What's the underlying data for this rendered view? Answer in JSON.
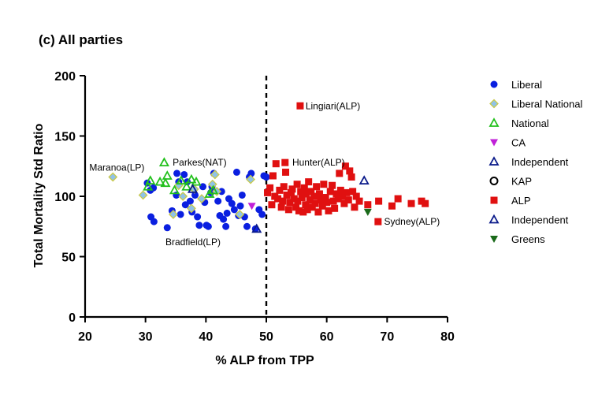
{
  "chart_data": {
    "type": "scatter",
    "title": "(c) All parties",
    "xlabel": "% ALP from TPP",
    "ylabel": "Total Mortality Std Ratio",
    "xlim": [
      20,
      80
    ],
    "ylim": [
      0,
      200
    ],
    "xticks": [
      "20",
      "30",
      "40",
      "50",
      "60",
      "70",
      "80"
    ],
    "yticks": [
      "0",
      "50",
      "100",
      "150",
      "200"
    ],
    "xtick_values": [
      20,
      30,
      40,
      50,
      60,
      70,
      80
    ],
    "ytick_values": [
      0,
      50,
      100,
      150,
      200
    ],
    "reference_line": {
      "x": 50,
      "style": "dashed"
    },
    "legend_position": "right",
    "series": [
      {
        "name": "Liberal",
        "marker": "circle-filled",
        "color": "#0a1fe0",
        "points": [
          [
            30.3,
            111
          ],
          [
            30.8,
            105
          ],
          [
            31.3,
            107
          ],
          [
            30.9,
            83
          ],
          [
            31.4,
            79
          ],
          [
            33.6,
            74
          ],
          [
            34.4,
            88
          ],
          [
            35.1,
            101
          ],
          [
            35.2,
            119
          ],
          [
            35.5,
            112
          ],
          [
            35.8,
            85
          ],
          [
            36.4,
            118
          ],
          [
            36.6,
            93
          ],
          [
            36.9,
            112
          ],
          [
            37.4,
            96
          ],
          [
            37.7,
            87
          ],
          [
            38.2,
            101
          ],
          [
            38.6,
            83
          ],
          [
            38.9,
            76
          ],
          [
            39.5,
            108
          ],
          [
            39.8,
            95
          ],
          [
            40.1,
            76
          ],
          [
            40.4,
            75
          ],
          [
            40.8,
            103
          ],
          [
            41.0,
            108
          ],
          [
            41.3,
            119
          ],
          [
            42.0,
            96
          ],
          [
            42.3,
            84
          ],
          [
            42.6,
            104
          ],
          [
            42.9,
            81
          ],
          [
            43.5,
            86
          ],
          [
            43.3,
            75
          ],
          [
            43.8,
            98
          ],
          [
            44.3,
            94
          ],
          [
            44.7,
            89
          ],
          [
            45.1,
            120
          ],
          [
            45.4,
            84
          ],
          [
            45.7,
            92
          ],
          [
            46.0,
            101
          ],
          [
            46.4,
            83
          ],
          [
            46.8,
            75
          ],
          [
            47.2,
            116
          ],
          [
            47.5,
            119
          ],
          [
            48.2,
            73
          ],
          [
            48.8,
            89
          ],
          [
            49.3,
            85
          ],
          [
            49.6,
            117
          ],
          [
            50.0,
            116
          ]
        ]
      },
      {
        "name": "Liberal National",
        "marker": "diamond",
        "color": "#8fc2e8",
        "points": [
          [
            24.6,
            116
          ],
          [
            29.6,
            101
          ],
          [
            34.6,
            85
          ],
          [
            35.5,
            109
          ],
          [
            36.2,
            100
          ],
          [
            37.6,
            90
          ],
          [
            38.1,
            106
          ],
          [
            39.3,
            98
          ],
          [
            41.1,
            110
          ],
          [
            41.5,
            118
          ],
          [
            41.8,
            104
          ],
          [
            45.6,
            85
          ],
          [
            47.4,
            114
          ]
        ]
      },
      {
        "name": "National",
        "marker": "triangle-open",
        "color": "#22c01c",
        "points": [
          [
            30.4,
            108
          ],
          [
            30.8,
            113
          ],
          [
            32.4,
            112
          ],
          [
            33.3,
            111
          ],
          [
            33.6,
            117
          ],
          [
            33.1,
            128
          ],
          [
            34.8,
            105
          ],
          [
            35.9,
            113
          ],
          [
            36.8,
            108
          ],
          [
            37.6,
            114
          ],
          [
            38.4,
            112
          ],
          [
            40.6,
            102
          ],
          [
            41.2,
            105
          ]
        ]
      },
      {
        "name": "CA",
        "marker": "triangle-down",
        "color": "#c020d8",
        "points": [
          [
            47.6,
            92
          ]
        ]
      },
      {
        "name": "Independent",
        "marker": "triangle-open",
        "color": "#0a1a8a",
        "points": [
          [
            37.8,
            106
          ],
          [
            48.4,
            73
          ],
          [
            66.2,
            113
          ]
        ]
      },
      {
        "name": "KAP",
        "marker": "circle-open",
        "color": "#000000",
        "points": []
      },
      {
        "name": "ALP",
        "marker": "square",
        "color": "#e01010",
        "points": [
          [
            50.2,
            103
          ],
          [
            50.6,
            107
          ],
          [
            50.9,
            93
          ],
          [
            51.1,
            117
          ],
          [
            51.4,
            100
          ],
          [
            51.6,
            127
          ],
          [
            51.9,
            98
          ],
          [
            52.2,
            105
          ],
          [
            52.5,
            91
          ],
          [
            52.7,
            96
          ],
          [
            52.9,
            108
          ],
          [
            53.1,
            128
          ],
          [
            53.2,
            120
          ],
          [
            53.4,
            101
          ],
          [
            53.7,
            89
          ],
          [
            53.9,
            95
          ],
          [
            54.1,
            103
          ],
          [
            54.3,
            106
          ],
          [
            54.6,
            98
          ],
          [
            54.9,
            91
          ],
          [
            55.1,
            110
          ],
          [
            55.2,
            96
          ],
          [
            55.4,
            88
          ],
          [
            55.6,
            175
          ],
          [
            55.7,
            104
          ],
          [
            55.9,
            99
          ],
          [
            56.1,
            87
          ],
          [
            56.3,
            107
          ],
          [
            56.5,
            93
          ],
          [
            56.6,
            102
          ],
          [
            56.8,
            89
          ],
          [
            57.0,
            112
          ],
          [
            57.2,
            97
          ],
          [
            57.4,
            104
          ],
          [
            57.6,
            91
          ],
          [
            57.9,
            100
          ],
          [
            58.1,
            94
          ],
          [
            58.3,
            108
          ],
          [
            58.6,
            87
          ],
          [
            58.8,
            102
          ],
          [
            59.0,
            97
          ],
          [
            59.3,
            92
          ],
          [
            59.5,
            110
          ],
          [
            59.8,
            99
          ],
          [
            60.0,
            95
          ],
          [
            60.3,
            88
          ],
          [
            60.6,
            104
          ],
          [
            60.9,
            109
          ],
          [
            61.1,
            96
          ],
          [
            61.3,
            90
          ],
          [
            61.6,
            102
          ],
          [
            61.9,
            98
          ],
          [
            62.1,
            119
          ],
          [
            62.3,
            105
          ],
          [
            62.6,
            100
          ],
          [
            62.9,
            94
          ],
          [
            63.1,
            125
          ],
          [
            63.3,
            103
          ],
          [
            63.6,
            97
          ],
          [
            63.8,
            121
          ],
          [
            64.1,
            116
          ],
          [
            64.3,
            104
          ],
          [
            64.6,
            91
          ],
          [
            64.9,
            100
          ],
          [
            65.4,
            96
          ],
          [
            66.8,
            93
          ],
          [
            68.5,
            79
          ],
          [
            68.6,
            96
          ],
          [
            70.8,
            92
          ],
          [
            71.8,
            98
          ],
          [
            74.0,
            94
          ],
          [
            75.7,
            96
          ],
          [
            76.3,
            94
          ]
        ]
      },
      {
        "name": "Independent",
        "marker": "triangle-open",
        "color": "#0a1a8a",
        "points": []
      },
      {
        "name": "Greens",
        "marker": "triangle-down",
        "color": "#1a6a1a",
        "points": [
          [
            66.8,
            87
          ]
        ]
      }
    ],
    "annotations": [
      {
        "text": "Lingiari(ALP)",
        "x": 56.5,
        "y": 175,
        "anchor": "start"
      },
      {
        "text": "Maranoa(LP)",
        "x": 20.7,
        "y": 124,
        "anchor": "start"
      },
      {
        "text": "Parkes(NAT)",
        "x": 34.5,
        "y": 128,
        "anchor": "start"
      },
      {
        "text": "Hunter(ALP)",
        "x": 54.3,
        "y": 128,
        "anchor": "start"
      },
      {
        "text": "Bradfield(LP)",
        "x": 33.3,
        "y": 62,
        "anchor": "start"
      },
      {
        "text": "Sydney(ALP)",
        "x": 69.5,
        "y": 79,
        "anchor": "start"
      }
    ]
  }
}
